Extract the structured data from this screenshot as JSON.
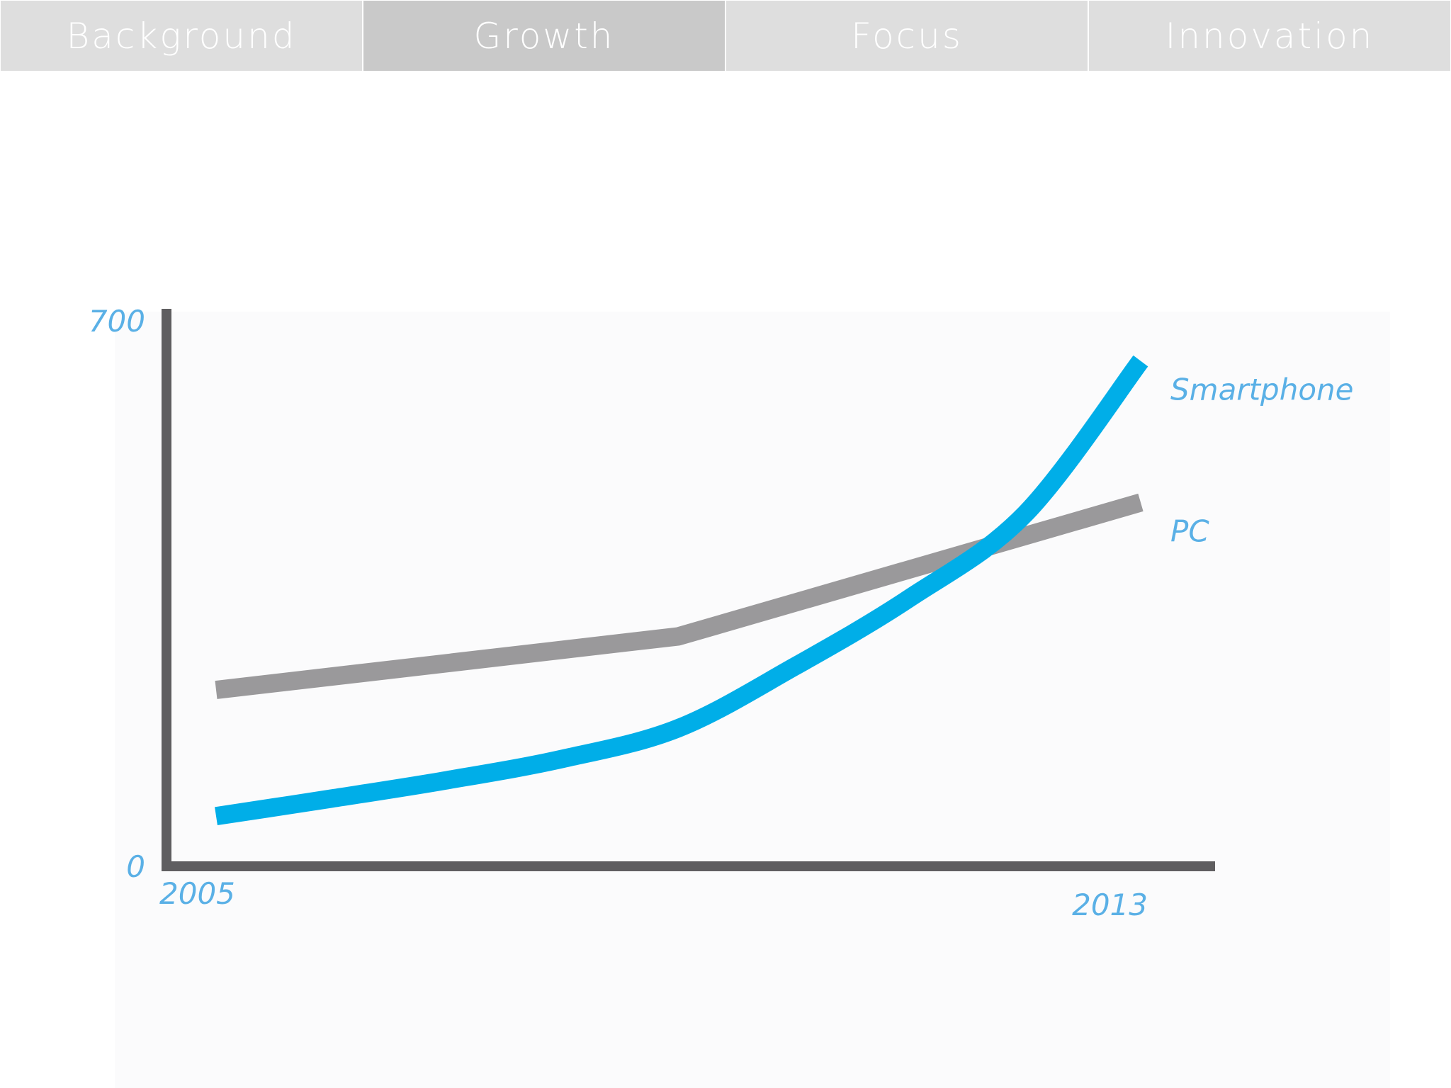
{
  "tabs": [
    {
      "label": "Background",
      "active": false
    },
    {
      "label": "Growth",
      "active": true
    },
    {
      "label": "Focus",
      "active": false
    },
    {
      "label": "Innovation",
      "active": false
    }
  ],
  "colors": {
    "tab_bg": "#dedede",
    "tab_active_bg": "#c9c9c9",
    "tab_text": "#ffffff",
    "axis": "#5f5e60",
    "label": "#5ab0e6",
    "smartphone": "#00aee8",
    "pc": "#9a999b"
  },
  "chart_data": {
    "type": "line",
    "title": "",
    "xlabel": "",
    "ylabel": "",
    "x_ticks": [
      "2005",
      "2013"
    ],
    "y_ticks": [
      "0",
      "700"
    ],
    "xlim": [
      2005,
      2013
    ],
    "ylim": [
      0,
      700
    ],
    "grid": false,
    "legend": "inline labels at line ends",
    "series": [
      {
        "name": "Smartphone",
        "color": "#00aee8",
        "x": [
          2005,
          2006,
          2007,
          2008,
          2009,
          2010,
          2011,
          2012,
          2013
        ],
        "y": [
          35,
          58,
          82,
          110,
          150,
          230,
          320,
          430,
          630
        ]
      },
      {
        "name": "PC",
        "color": "#9a999b",
        "x": [
          2005,
          2009,
          2013
        ],
        "y": [
          200,
          270,
          445
        ]
      }
    ]
  }
}
